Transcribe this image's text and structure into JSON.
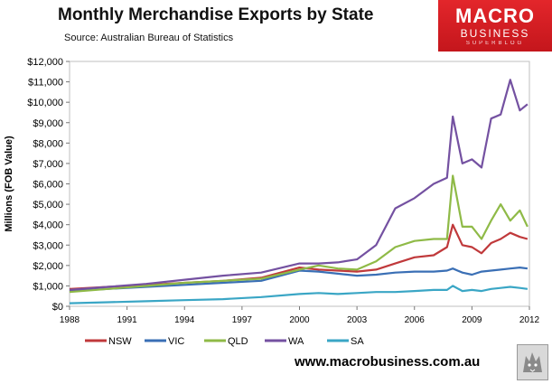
{
  "header": {
    "title": "Monthly Merchandise Exports by State",
    "source": "Source:  Australian Bureau of Statistics"
  },
  "logo": {
    "line1": "MACRO",
    "line2": "BUSINESS",
    "line3": "SUPERBLOG",
    "color": "#d71f26"
  },
  "footer": {
    "url": "www.macrobusiness.com.au",
    "badge_icon": "wolf-icon"
  },
  "chart_data": {
    "type": "line",
    "ylabel": "Millions (FOB Value)",
    "xlabel": "",
    "ylim": [
      0,
      12000
    ],
    "xlim": [
      1988,
      2012
    ],
    "x_ticks": [
      "1988",
      "1991",
      "1994",
      "1997",
      "2000",
      "2003",
      "2006",
      "2009",
      "2012"
    ],
    "y_ticks": [
      "$0",
      "$1,000",
      "$2,000",
      "$3,000",
      "$4,000",
      "$5,000",
      "$6,000",
      "$7,000",
      "$8,000",
      "$9,000",
      "$10,000",
      "$11,000",
      "$12,000"
    ],
    "grid": false,
    "legend_position": "bottom",
    "x": [
      1988,
      1990,
      1992,
      1994,
      1996,
      1998,
      2000,
      2001,
      2002,
      2003,
      2004,
      2005,
      2006,
      2007,
      2007.7,
      2008,
      2008.5,
      2009,
      2009.5,
      2010,
      2010.5,
      2011,
      2011.5,
      2011.9
    ],
    "series": [
      {
        "name": "NSW",
        "color": "#c0393b",
        "values": [
          850,
          950,
          1050,
          1150,
          1250,
          1400,
          1900,
          1800,
          1750,
          1700,
          1800,
          2100,
          2400,
          2500,
          2900,
          4000,
          3000,
          2900,
          2600,
          3100,
          3300,
          3600,
          3400,
          3300
        ]
      },
      {
        "name": "VIC",
        "color": "#3a6fb5",
        "values": [
          750,
          850,
          950,
          1050,
          1150,
          1250,
          1750,
          1700,
          1600,
          1500,
          1550,
          1650,
          1700,
          1700,
          1750,
          1850,
          1650,
          1550,
          1700,
          1750,
          1800,
          1850,
          1900,
          1850
        ]
      },
      {
        "name": "QLD",
        "color": "#8fba47",
        "values": [
          700,
          850,
          1000,
          1150,
          1250,
          1350,
          1800,
          2000,
          1850,
          1800,
          2200,
          2900,
          3200,
          3300,
          3300,
          6400,
          3900,
          3900,
          3300,
          4200,
          5000,
          4200,
          4700,
          3900
        ]
      },
      {
        "name": "WA",
        "color": "#7451a1",
        "values": [
          800,
          950,
          1100,
          1300,
          1500,
          1650,
          2100,
          2100,
          2150,
          2300,
          3000,
          4800,
          5300,
          6000,
          6300,
          9300,
          7000,
          7200,
          6800,
          9200,
          9400,
          11100,
          9600,
          9900
        ]
      },
      {
        "name": "SA",
        "color": "#3aa6c5",
        "values": [
          150,
          200,
          250,
          300,
          350,
          450,
          600,
          650,
          600,
          650,
          700,
          700,
          750,
          800,
          800,
          1000,
          750,
          800,
          750,
          850,
          900,
          950,
          900,
          850
        ]
      }
    ]
  }
}
